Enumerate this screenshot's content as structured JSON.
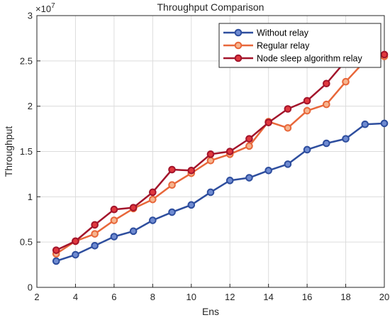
{
  "chart_data": {
    "type": "line",
    "title": "Throughput Comparison",
    "xlabel": "Ens",
    "ylabel": "Throughput",
    "xlim": [
      2,
      20
    ],
    "ylim": [
      0,
      30000000
    ],
    "x_ticks": [
      2,
      4,
      6,
      8,
      10,
      12,
      14,
      16,
      18,
      20
    ],
    "y_ticks": [
      0,
      5000000,
      10000000,
      15000000,
      20000000,
      25000000,
      30000000
    ],
    "y_tick_labels": [
      "0",
      "0.5",
      "1",
      "1.5",
      "2",
      "2.5",
      "3"
    ],
    "y_exponent_base": "×10",
    "y_exponent_power": "7",
    "grid": true,
    "legend_position": "top-right",
    "series": [
      {
        "name": "Without relay",
        "color": "#2E4E9E",
        "marker_fill": "#6F8BD1",
        "x": [
          3,
          4,
          5,
          6,
          7,
          8,
          9,
          10,
          11,
          12,
          13,
          14,
          15,
          16,
          17,
          18,
          19,
          20
        ],
        "values": [
          2900000,
          3600000,
          4600000,
          5600000,
          6200000,
          7400000,
          8300000,
          9100000,
          10500000,
          11800000,
          12100000,
          12900000,
          13600000,
          15200000,
          15900000,
          16400000,
          18000000,
          18100000
        ]
      },
      {
        "name": "Regular relay",
        "color": "#E8673A",
        "marker_fill": "#F6B48E",
        "x": [
          3,
          4,
          5,
          6,
          7,
          8,
          9,
          10,
          11,
          12,
          13,
          14,
          15,
          16,
          17,
          18,
          19,
          20
        ],
        "values": [
          3700000,
          5100000,
          5900000,
          7400000,
          8700000,
          9700000,
          11300000,
          12600000,
          14000000,
          14700000,
          15600000,
          18300000,
          17600000,
          19500000,
          20200000,
          22700000,
          25000000,
          25500000
        ]
      },
      {
        "name": "Node sleep algorithm relay",
        "color": "#A3142B",
        "marker_fill": "#E0383E",
        "x": [
          3,
          4,
          5,
          6,
          7,
          8,
          9,
          10,
          11,
          12,
          13,
          14,
          15,
          16,
          17,
          18,
          19,
          20
        ],
        "values": [
          4100000,
          5100000,
          6900000,
          8600000,
          8800000,
          10500000,
          13000000,
          12900000,
          14700000,
          15000000,
          16400000,
          18200000,
          19700000,
          20600000,
          22500000,
          25000000,
          25200000,
          25700000
        ]
      }
    ]
  }
}
